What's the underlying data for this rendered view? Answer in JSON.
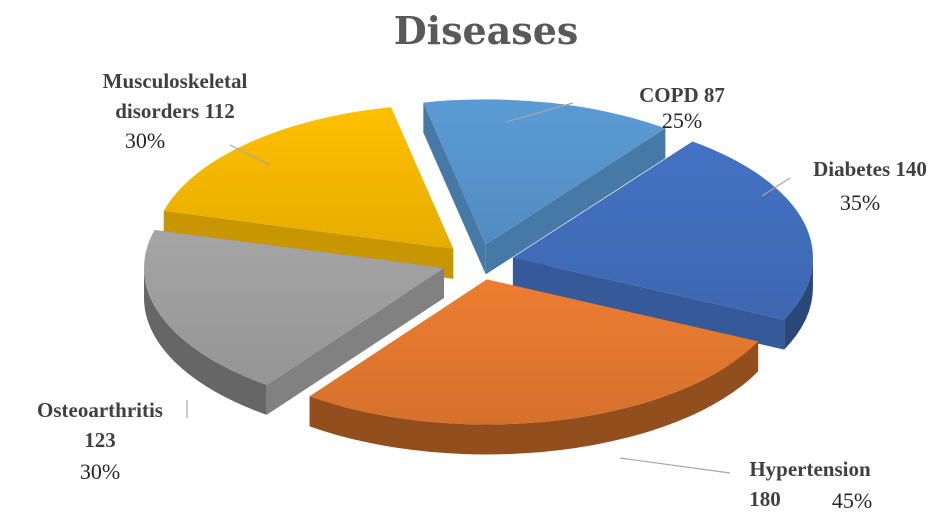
{
  "chart_data": {
    "type": "pie",
    "title": "Diseases",
    "slices": [
      {
        "name": "COPD",
        "value": 87,
        "label_line1": "COPD 87",
        "label_line2": "",
        "percent": "25%",
        "color": "#5b9bd5"
      },
      {
        "name": "Diabetes",
        "value": 140,
        "label_line1": "Diabetes 140",
        "label_line2": "",
        "percent": "35%",
        "color": "#4472c4"
      },
      {
        "name": "Hypertension",
        "value": 180,
        "label_line1": "Hypertension",
        "label_line2": "180",
        "percent": "45%",
        "color": "#ed7d31"
      },
      {
        "name": "Osteoarthritis",
        "value": 123,
        "label_line1": "Osteoarthritis",
        "label_line2": "123",
        "percent": "30%",
        "color": "#a5a5a5"
      },
      {
        "name": "Musculoskeletal disorders",
        "value": 112,
        "label_line1": "Musculoskeletal",
        "label_line2": "disorders 112",
        "percent": "30%",
        "color": "#ffc000"
      }
    ],
    "style": "3d-exploded",
    "legend": "none"
  }
}
